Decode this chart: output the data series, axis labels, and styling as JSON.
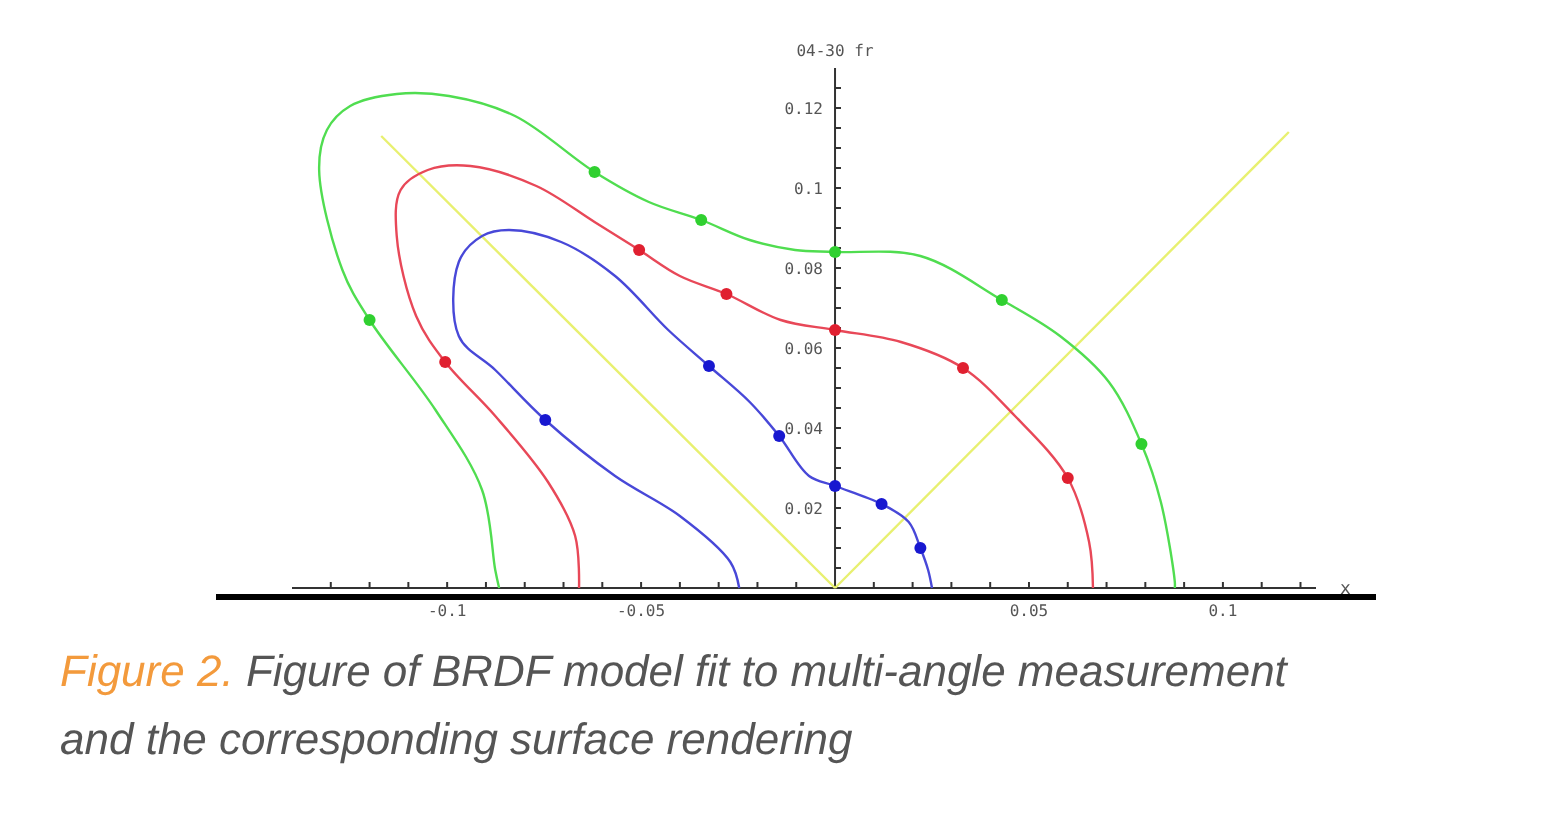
{
  "chart_data": {
    "type": "line",
    "ylabel": "04-30 fr",
    "xlabel": "x",
    "xlim": [
      -0.14,
      0.124
    ],
    "ylim": [
      0,
      0.13
    ],
    "xticks": [
      {
        "value": -0.13,
        "label": null
      },
      {
        "value": -0.12,
        "label": null
      },
      {
        "value": -0.11,
        "label": null
      },
      {
        "value": -0.1,
        "label": "-0.1"
      },
      {
        "value": -0.09,
        "label": null
      },
      {
        "value": -0.08,
        "label": null
      },
      {
        "value": -0.07,
        "label": null
      },
      {
        "value": -0.06,
        "label": null
      },
      {
        "value": -0.05,
        "label": "-0.05"
      },
      {
        "value": -0.04,
        "label": null
      },
      {
        "value": -0.03,
        "label": null
      },
      {
        "value": -0.02,
        "label": null
      },
      {
        "value": -0.01,
        "label": null
      },
      {
        "value": 0.01,
        "label": null
      },
      {
        "value": 0.02,
        "label": null
      },
      {
        "value": 0.03,
        "label": null
      },
      {
        "value": 0.04,
        "label": null
      },
      {
        "value": 0.05,
        "label": "0.05"
      },
      {
        "value": 0.06,
        "label": null
      },
      {
        "value": 0.07,
        "label": null
      },
      {
        "value": 0.08,
        "label": null
      },
      {
        "value": 0.09,
        "label": null
      },
      {
        "value": 0.1,
        "label": "0.1"
      },
      {
        "value": 0.11,
        "label": null
      },
      {
        "value": 0.12,
        "label": null
      }
    ],
    "yticks": [
      {
        "value": 0.005,
        "label": null
      },
      {
        "value": 0.01,
        "label": null
      },
      {
        "value": 0.015,
        "label": null
      },
      0.02,
      {
        "value": 0.025,
        "label": null
      },
      {
        "value": 0.03,
        "label": null
      },
      {
        "value": 0.035,
        "label": null
      },
      0.04,
      {
        "value": 0.045,
        "label": null
      },
      {
        "value": 0.05,
        "label": null
      },
      {
        "value": 0.055,
        "label": null
      },
      0.06,
      {
        "value": 0.065,
        "label": null
      },
      {
        "value": 0.07,
        "label": null
      },
      {
        "value": 0.075,
        "label": null
      },
      0.08,
      {
        "value": 0.085,
        "label": null
      },
      {
        "value": 0.09,
        "label": null
      },
      {
        "value": 0.095,
        "label": null
      },
      {
        "value": 0.1,
        "label": "0.1"
      },
      {
        "value": 0.105,
        "label": null
      },
      {
        "value": 0.11,
        "label": null
      },
      {
        "value": 0.115,
        "label": null
      },
      0.12,
      {
        "value": 0.125,
        "label": null
      }
    ],
    "grid": false,
    "series": [
      {
        "color": "#e8f070",
        "x": [
          -0.117,
          0
        ],
        "values": [
          0.113,
          0
        ]
      },
      {
        "color": "#e8f070",
        "x": [
          0,
          0.117
        ],
        "values": [
          0,
          0.114
        ]
      },
      {
        "color": "#50dd50",
        "x": [
          -0.0866,
          -0.0876,
          -0.091,
          -0.103,
          -0.12,
          -0.127,
          -0.133,
          -0.131,
          -0.125,
          -0.113,
          -0.0995,
          -0.0825,
          -0.062,
          -0.048,
          -0.0345,
          -0.022,
          -0.0103,
          0,
          0.022,
          0.043,
          0.058,
          0.0706,
          0.079,
          0.084,
          0.0876,
          0.0876
        ],
        "values": [
          0,
          0.0045,
          0.0245,
          0.0445,
          0.067,
          0.0795,
          0.1045,
          0.1145,
          0.1205,
          0.1235,
          0.123,
          0.118,
          0.104,
          0.0965,
          0.092,
          0.087,
          0.0845,
          0.084,
          0.083,
          0.072,
          0.063,
          0.0515,
          0.036,
          0.0215,
          0.0015,
          0
        ]
      },
      {
        "color": "#e84858",
        "x": [
          -0.066,
          -0.067,
          -0.074,
          -0.0876,
          -0.1005,
          -0.108,
          -0.113,
          -0.112,
          -0.105,
          -0.094,
          -0.077,
          -0.062,
          -0.0505,
          -0.04,
          -0.028,
          -0.014,
          0,
          0.017,
          0.033,
          0.0464,
          0.06,
          0.0655,
          0.0665
        ],
        "values": [
          0,
          0.013,
          0.0265,
          0.043,
          0.0565,
          0.068,
          0.088,
          0.0995,
          0.1045,
          0.1055,
          0.1005,
          0.0915,
          0.0845,
          0.078,
          0.0735,
          0.067,
          0.0645,
          0.0615,
          0.055,
          0.043,
          0.0275,
          0.0115,
          0
        ]
      },
      {
        "color": "#4848d8",
        "x": [
          -0.0247,
          -0.027,
          -0.04,
          -0.0567,
          -0.0747,
          -0.0876,
          -0.097,
          -0.097,
          -0.091,
          -0.084,
          -0.0706,
          -0.0567,
          -0.043,
          -0.0325,
          -0.022,
          -0.0144,
          -0.0067,
          0,
          0.012,
          0.019,
          0.022,
          0.024,
          0.025
        ],
        "values": [
          0,
          0.0065,
          0.018,
          0.028,
          0.042,
          0.0545,
          0.063,
          0.0815,
          0.088,
          0.0895,
          0.0865,
          0.078,
          0.0645,
          0.0555,
          0.0465,
          0.038,
          0.028,
          0.0255,
          0.021,
          0.0165,
          0.01,
          0.0045,
          0
        ]
      },
      {
        "type": "scatter",
        "color": "#30d030",
        "x": [
          -0.12,
          -0.062,
          -0.0345,
          0,
          0.043,
          0.079
        ],
        "values": [
          0.067,
          0.104,
          0.092,
          0.084,
          0.072,
          0.036
        ]
      },
      {
        "type": "scatter",
        "color": "#e02030",
        "x": [
          -0.1005,
          -0.0505,
          -0.028,
          0,
          0.033,
          0.06
        ],
        "values": [
          0.0565,
          0.0845,
          0.0735,
          0.0645,
          0.055,
          0.0275
        ]
      },
      {
        "type": "scatter",
        "color": "#1818d0",
        "x": [
          -0.0747,
          -0.0325,
          -0.0144,
          0,
          0.012,
          0.022
        ],
        "values": [
          0.042,
          0.0555,
          0.038,
          0.0255,
          0.021,
          0.01
        ]
      }
    ],
    "annotations": [
      "Figure 2.",
      "Figure of BRDF model fit to multi-angle measurement and the corresponding surface rendering"
    ]
  }
}
